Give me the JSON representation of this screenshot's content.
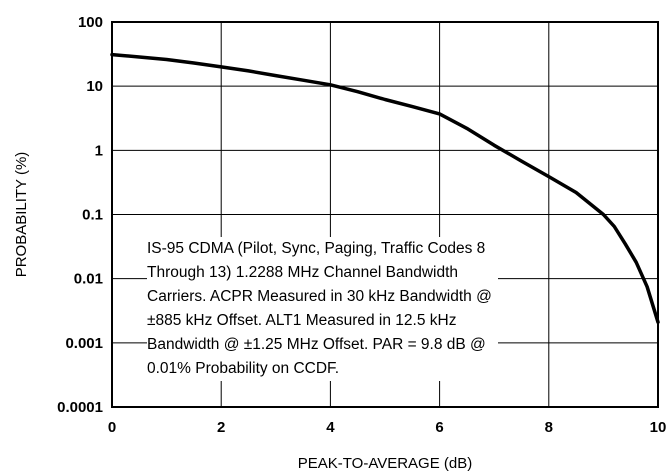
{
  "chart_data": {
    "type": "line",
    "xlabel": "PEAK-TO-AVERAGE (dB)",
    "ylabel": "PROBABILITY (%)",
    "xlim": [
      0,
      10
    ],
    "ylim": [
      0.0001,
      100
    ],
    "yscale": "log",
    "grid": true,
    "x_ticks": [
      "0",
      "2",
      "4",
      "6",
      "8",
      "10"
    ],
    "y_ticks": [
      "100",
      "10",
      "1",
      "0.1",
      "0.01",
      "0.001",
      "0.0001"
    ],
    "series": [
      {
        "x": [
          0,
          0.5,
          1,
          1.5,
          2,
          2.5,
          3,
          3.5,
          4,
          4.5,
          5,
          5.5,
          6,
          6.5,
          7,
          7.5,
          8,
          8.5,
          9,
          9.2,
          9.4,
          9.6,
          9.8,
          10
        ],
        "y": [
          31,
          28.5,
          26,
          23,
          20,
          17.3,
          14.6,
          12.4,
          10.5,
          8.2,
          6.2,
          4.8,
          3.7,
          2.2,
          1.2,
          0.68,
          0.39,
          0.22,
          0.1,
          0.065,
          0.035,
          0.018,
          0.0075,
          0.0021
        ]
      }
    ]
  },
  "annotation": "IS-95 CDMA (Pilot, Sync, Paging, Traffic Codes 8 Through 13) 1.2288 MHz Channel Bandwidth Carriers. ACPR Measured in 30 kHz Bandwidth @ ±885 kHz Offset. ALT1 Measured in 12.5 kHz Bandwidth @ ±1.25 MHz Offset. PAR = 9.8 dB @ 0.01% Probability on CCDF."
}
